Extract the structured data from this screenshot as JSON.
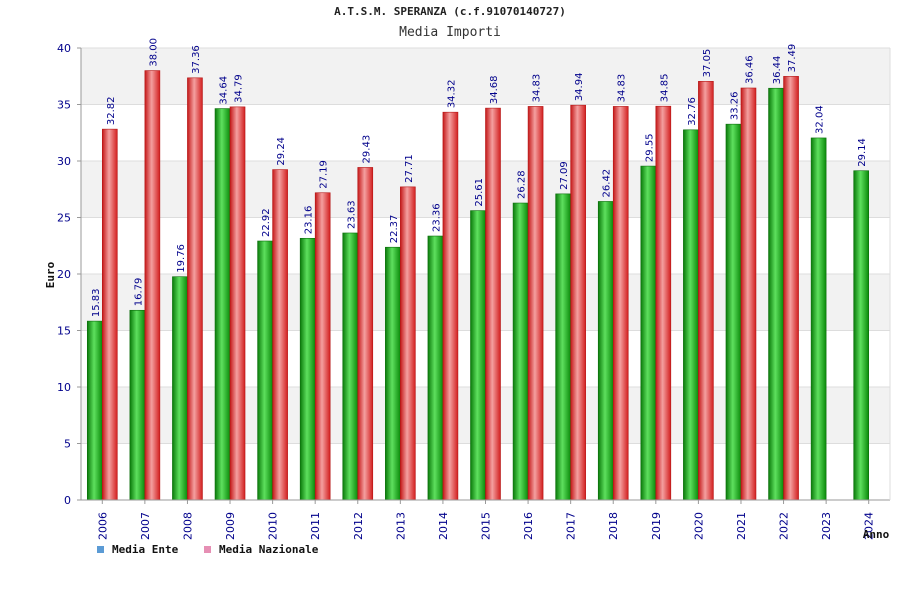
{
  "title": "A.T.S.M. SPERANZA (c.f.91070140727)",
  "subtitle": "Media Importi",
  "colors": {
    "ente": "#12b012",
    "nazionale": "#e02a2a",
    "legend_ente": "#5b9bd5",
    "legend_nazionale": "#e68fb4",
    "axis_text": "#00008b"
  },
  "chart_data": {
    "type": "bar",
    "title": "A.T.S.M. SPERANZA (c.f.91070140727)",
    "subtitle": "Media Importi",
    "xlabel": "Anno",
    "ylabel": "Euro",
    "ylim": [
      0,
      40
    ],
    "yticks": [
      0,
      5,
      10,
      15,
      20,
      25,
      30,
      35,
      40
    ],
    "grid": true,
    "legend_position": "bottom-left",
    "categories": [
      "2006",
      "2007",
      "2008",
      "2009",
      "2010",
      "2011",
      "2012",
      "2013",
      "2014",
      "2015",
      "2016",
      "2017",
      "2018",
      "2019",
      "2020",
      "2021",
      "2022",
      "2023",
      "2024"
    ],
    "series": [
      {
        "name": "Media Ente",
        "values": [
          15.83,
          16.79,
          19.76,
          34.64,
          22.92,
          23.16,
          23.63,
          22.37,
          23.36,
          25.61,
          26.28,
          27.09,
          26.42,
          29.55,
          32.76,
          33.26,
          36.44,
          32.04,
          29.14
        ],
        "labels": [
          "15.83",
          "16.79",
          "19.76",
          "34.64",
          "22.92",
          "23.16",
          "23.63",
          "22.37",
          "23.36",
          "25.61",
          "26.28",
          "27.09",
          "26.42",
          "29.55",
          "32.76",
          "33.26",
          "36.44",
          "32.04",
          "29.14"
        ]
      },
      {
        "name": "Media Nazionale",
        "values": [
          32.82,
          38.0,
          37.36,
          34.79,
          29.24,
          27.19,
          29.43,
          27.71,
          34.32,
          34.68,
          34.83,
          34.94,
          34.83,
          34.85,
          37.05,
          36.46,
          37.49,
          null,
          null
        ],
        "labels": [
          "32.82",
          "38.00",
          "37.36",
          "34.79",
          "29.24",
          "27.19",
          "29.43",
          "27.71",
          "34.32",
          "34.68",
          "34.83",
          "34.94",
          "34.83",
          "34.85",
          "37.05",
          "36.46",
          "37.49",
          null,
          null
        ]
      }
    ]
  }
}
